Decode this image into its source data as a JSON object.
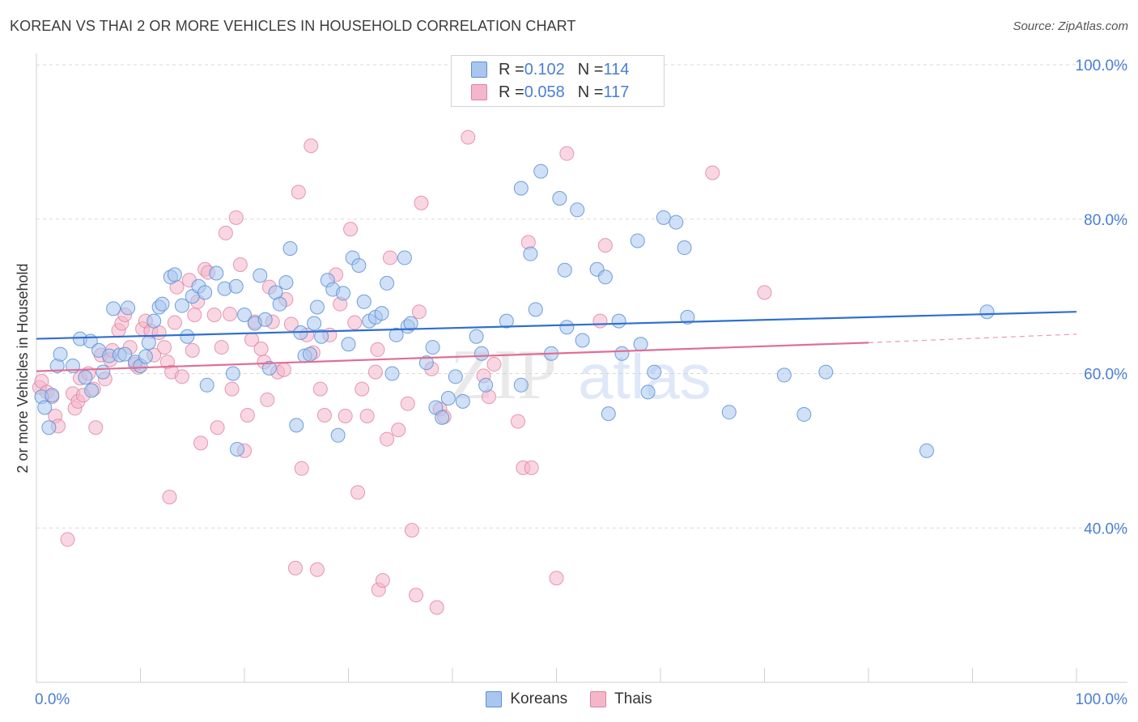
{
  "title": "KOREAN VS THAI 2 OR MORE VEHICLES IN HOUSEHOLD CORRELATION CHART",
  "source": "Source: ZipAtlas.com",
  "watermark": {
    "zip": "ZIP",
    "atlas": "atlas"
  },
  "legend_top": {
    "rows": [
      {
        "r_label": "R = ",
        "r_value": "0.102",
        "n_label": "N = ",
        "n_value": "114"
      },
      {
        "r_label": "R = ",
        "r_value": "0.058",
        "n_label": "N = ",
        "n_value": "117"
      }
    ]
  },
  "legend_bottom": {
    "koreans": "Koreans",
    "thais": "Thais"
  },
  "colors": {
    "korean_fill": "#a9c6ef",
    "korean_stroke": "#5b8fd6",
    "korean_line": "#2f6fcf",
    "thai_fill": "#f4b7ca",
    "thai_stroke": "#e07fa0",
    "thai_line": "#e06e95",
    "tick_label": "#4a7fd4",
    "grid": "#d9d9d9"
  },
  "chart_data": {
    "type": "scatter",
    "title": "KOREAN VS THAI 2 OR MORE VEHICLES IN HOUSEHOLD CORRELATION CHART",
    "xlabel": "",
    "ylabel": "2 or more Vehicles in Household",
    "xlim": [
      0,
      100
    ],
    "ylim": [
      20,
      100
    ],
    "x_tick_labels": [
      "0.0%",
      "100.0%"
    ],
    "y_tick_labels": [
      "100.0%",
      "80.0%",
      "60.0%",
      "40.0%"
    ],
    "y_ticks": [
      100,
      80,
      60,
      40
    ],
    "grid": true,
    "legend_position": "top-center",
    "series": [
      {
        "name": "Koreans",
        "r": 0.102,
        "n": 114,
        "trend": {
          "x": [
            0,
            100
          ],
          "y": [
            64.5,
            68.0
          ]
        },
        "points": [
          [
            0.5,
            57.0
          ],
          [
            0.8,
            55.6
          ],
          [
            1.2,
            53.0
          ],
          [
            1.5,
            57.2
          ],
          [
            2.0,
            61.0
          ],
          [
            2.3,
            62.5
          ],
          [
            3.5,
            61.0
          ],
          [
            4.2,
            64.5
          ],
          [
            4.7,
            59.5
          ],
          [
            5.2,
            64.2
          ],
          [
            5.3,
            57.8
          ],
          [
            6.0,
            63.0
          ],
          [
            6.4,
            60.2
          ],
          [
            7.0,
            62.3
          ],
          [
            7.4,
            68.4
          ],
          [
            8.0,
            62.4
          ],
          [
            8.5,
            62.5
          ],
          [
            8.8,
            68.5
          ],
          [
            9.5,
            61.5
          ],
          [
            10.0,
            61.0
          ],
          [
            10.5,
            62.2
          ],
          [
            10.8,
            64.0
          ],
          [
            11.3,
            66.8
          ],
          [
            11.8,
            68.6
          ],
          [
            12.1,
            69.0
          ],
          [
            12.9,
            72.5
          ],
          [
            13.3,
            72.8
          ],
          [
            14.0,
            68.8
          ],
          [
            14.5,
            64.8
          ],
          [
            15.0,
            70.0
          ],
          [
            15.6,
            71.3
          ],
          [
            16.2,
            70.5
          ],
          [
            16.4,
            58.5
          ],
          [
            17.3,
            73.0
          ],
          [
            18.1,
            71.0
          ],
          [
            18.9,
            60.0
          ],
          [
            19.2,
            71.3
          ],
          [
            19.3,
            50.2
          ],
          [
            20.0,
            67.6
          ],
          [
            21.0,
            66.5
          ],
          [
            21.5,
            72.7
          ],
          [
            22.0,
            67.0
          ],
          [
            22.4,
            60.7
          ],
          [
            23.0,
            70.5
          ],
          [
            23.4,
            69.0
          ],
          [
            24.0,
            71.8
          ],
          [
            24.4,
            76.2
          ],
          [
            25.0,
            53.3
          ],
          [
            25.4,
            65.3
          ],
          [
            25.8,
            62.3
          ],
          [
            26.3,
            62.5
          ],
          [
            26.7,
            66.5
          ],
          [
            27.0,
            68.6
          ],
          [
            27.4,
            64.8
          ],
          [
            28.0,
            72.1
          ],
          [
            28.5,
            70.9
          ],
          [
            29.0,
            52.0
          ],
          [
            29.5,
            70.4
          ],
          [
            30.0,
            63.8
          ],
          [
            30.4,
            75.0
          ],
          [
            31.0,
            74.0
          ],
          [
            31.5,
            69.3
          ],
          [
            32.0,
            66.8
          ],
          [
            32.6,
            67.3
          ],
          [
            33.2,
            67.8
          ],
          [
            33.7,
            71.7
          ],
          [
            34.2,
            60.0
          ],
          [
            34.6,
            65.0
          ],
          [
            35.4,
            75.0
          ],
          [
            35.7,
            66.1
          ],
          [
            36.0,
            66.5
          ],
          [
            37.5,
            61.4
          ],
          [
            38.1,
            63.4
          ],
          [
            38.4,
            55.6
          ],
          [
            39.0,
            54.3
          ],
          [
            39.6,
            56.8
          ],
          [
            40.3,
            59.6
          ],
          [
            41.0,
            56.4
          ],
          [
            42.3,
            64.8
          ],
          [
            42.8,
            62.6
          ],
          [
            43.2,
            58.5
          ],
          [
            45.2,
            66.8
          ],
          [
            46.6,
            58.5
          ],
          [
            46.6,
            84.0
          ],
          [
            47.5,
            75.5
          ],
          [
            48.0,
            68.3
          ],
          [
            48.5,
            86.2
          ],
          [
            49.5,
            62.6
          ],
          [
            50.3,
            82.7
          ],
          [
            50.8,
            73.4
          ],
          [
            51.0,
            66.0
          ],
          [
            52.0,
            81.2
          ],
          [
            52.5,
            64.3
          ],
          [
            53.9,
            73.5
          ],
          [
            54.7,
            72.5
          ],
          [
            55.0,
            54.8
          ],
          [
            56.0,
            66.8
          ],
          [
            56.3,
            62.6
          ],
          [
            57.8,
            77.2
          ],
          [
            58.1,
            63.8
          ],
          [
            58.8,
            57.6
          ],
          [
            59.4,
            60.2
          ],
          [
            60.3,
            80.2
          ],
          [
            61.5,
            79.6
          ],
          [
            62.3,
            76.3
          ],
          [
            62.6,
            67.3
          ],
          [
            66.6,
            55.0
          ],
          [
            71.9,
            59.8
          ],
          [
            73.8,
            54.7
          ],
          [
            75.9,
            60.2
          ],
          [
            85.6,
            50.0
          ],
          [
            91.4,
            68.0
          ]
        ]
      },
      {
        "name": "Thais",
        "r": 0.058,
        "n": 117,
        "trend": {
          "x": [
            0,
            80
          ],
          "y": [
            60.3,
            64.0
          ]
        },
        "trend_dashed": {
          "x": [
            80,
            100
          ],
          "y": [
            64.0,
            65.1
          ]
        },
        "points": [
          [
            0.3,
            58.2
          ],
          [
            0.5,
            59.0
          ],
          [
            1.0,
            57.6
          ],
          [
            1.5,
            57.0
          ],
          [
            1.8,
            54.5
          ],
          [
            2.1,
            53.2
          ],
          [
            3.0,
            38.5
          ],
          [
            3.5,
            57.4
          ],
          [
            3.7,
            55.5
          ],
          [
            4.0,
            56.4
          ],
          [
            4.2,
            59.4
          ],
          [
            4.5,
            57.2
          ],
          [
            5.0,
            60.0
          ],
          [
            5.5,
            58.0
          ],
          [
            5.7,
            53.0
          ],
          [
            6.2,
            62.4
          ],
          [
            6.6,
            59.3
          ],
          [
            7.1,
            61.8
          ],
          [
            7.3,
            63.0
          ],
          [
            7.9,
            65.6
          ],
          [
            8.2,
            66.5
          ],
          [
            8.5,
            67.6
          ],
          [
            9.0,
            63.4
          ],
          [
            9.5,
            61.2
          ],
          [
            9.8,
            60.8
          ],
          [
            10.2,
            65.8
          ],
          [
            10.5,
            66.8
          ],
          [
            11.0,
            65.5
          ],
          [
            11.3,
            62.4
          ],
          [
            11.8,
            65.3
          ],
          [
            12.3,
            63.4
          ],
          [
            12.6,
            61.5
          ],
          [
            12.8,
            44.0
          ],
          [
            13.0,
            60.2
          ],
          [
            13.3,
            66.6
          ],
          [
            13.5,
            71.2
          ],
          [
            14.0,
            59.6
          ],
          [
            14.7,
            72.1
          ],
          [
            15.0,
            63.0
          ],
          [
            15.2,
            67.6
          ],
          [
            15.5,
            69.3
          ],
          [
            15.8,
            51.0
          ],
          [
            16.2,
            73.5
          ],
          [
            16.5,
            73.1
          ],
          [
            17.1,
            67.6
          ],
          [
            17.4,
            53.0
          ],
          [
            17.8,
            63.4
          ],
          [
            18.2,
            78.2
          ],
          [
            18.6,
            67.7
          ],
          [
            18.8,
            58.0
          ],
          [
            19.2,
            80.2
          ],
          [
            19.6,
            74.1
          ],
          [
            20.0,
            50.0
          ],
          [
            20.3,
            54.6
          ],
          [
            20.7,
            64.4
          ],
          [
            21.0,
            66.7
          ],
          [
            21.6,
            63.2
          ],
          [
            21.9,
            61.5
          ],
          [
            22.2,
            56.6
          ],
          [
            22.4,
            71.2
          ],
          [
            22.7,
            66.7
          ],
          [
            23.2,
            60.2
          ],
          [
            23.8,
            60.5
          ],
          [
            24.0,
            69.6
          ],
          [
            24.5,
            66.4
          ],
          [
            24.9,
            34.8
          ],
          [
            25.2,
            83.5
          ],
          [
            25.5,
            47.7
          ],
          [
            26.0,
            65.0
          ],
          [
            26.4,
            89.5
          ],
          [
            26.6,
            62.7
          ],
          [
            27.0,
            34.6
          ],
          [
            27.3,
            58.0
          ],
          [
            27.7,
            54.6
          ],
          [
            28.2,
            65.0
          ],
          [
            28.8,
            72.8
          ],
          [
            29.2,
            69.0
          ],
          [
            29.7,
            54.5
          ],
          [
            30.2,
            78.7
          ],
          [
            30.6,
            66.6
          ],
          [
            30.9,
            44.6
          ],
          [
            31.3,
            58.0
          ],
          [
            31.8,
            54.5
          ],
          [
            32.6,
            60.2
          ],
          [
            32.8,
            63.1
          ],
          [
            32.9,
            32.0
          ],
          [
            33.3,
            33.2
          ],
          [
            33.7,
            51.5
          ],
          [
            34.0,
            75.0
          ],
          [
            34.8,
            52.7
          ],
          [
            35.7,
            56.1
          ],
          [
            36.1,
            39.7
          ],
          [
            36.5,
            31.3
          ],
          [
            36.8,
            68.0
          ],
          [
            37.0,
            82.1
          ],
          [
            38.0,
            60.6
          ],
          [
            38.5,
            29.7
          ],
          [
            38.8,
            55.4
          ],
          [
            39.2,
            54.4
          ],
          [
            41.5,
            90.6
          ],
          [
            43.0,
            59.7
          ],
          [
            43.5,
            57.0
          ],
          [
            44.0,
            61.2
          ],
          [
            46.3,
            53.8
          ],
          [
            46.8,
            47.8
          ],
          [
            47.3,
            77.0
          ],
          [
            47.6,
            47.8
          ],
          [
            50.0,
            33.5
          ],
          [
            51.0,
            88.5
          ],
          [
            54.2,
            66.8
          ],
          [
            54.7,
            76.6
          ],
          [
            65.0,
            86.0
          ],
          [
            70.0,
            70.5
          ]
        ]
      }
    ]
  }
}
